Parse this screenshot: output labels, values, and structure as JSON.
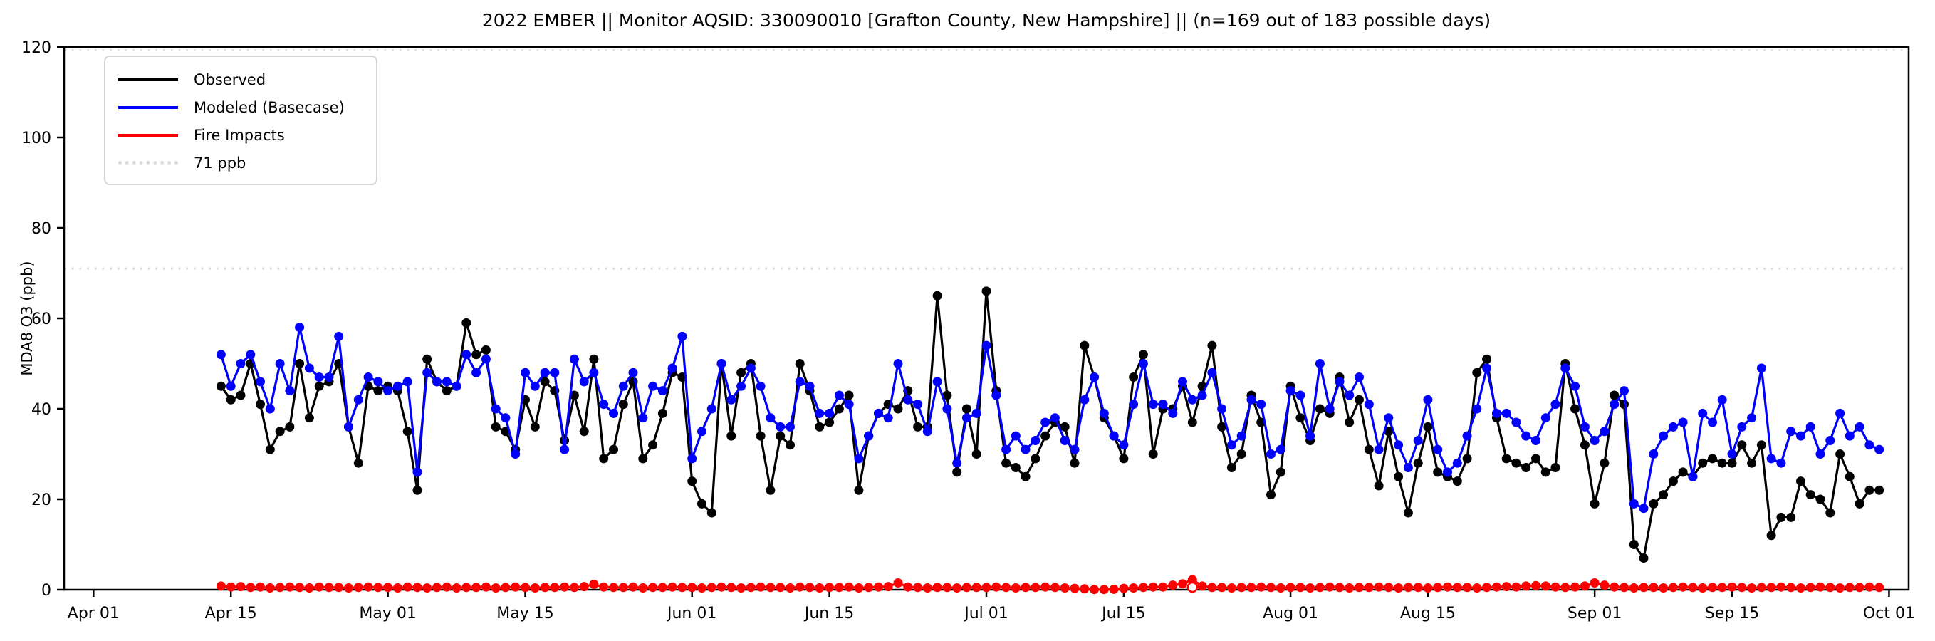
{
  "chart": {
    "title": "2022 EMBER || Monitor AQSID: 330090010 [Grafton County, New Hampshire] || (n=169 out of 183 possible days)",
    "ylabel": "MDA8 O3 (ppb)"
  },
  "legend": {
    "items": [
      {
        "label": "Observed",
        "color": "#000000",
        "line_style": "solid"
      },
      {
        "label": "Modeled (Basecase)",
        "color": "#0000ff",
        "line_style": "solid"
      },
      {
        "label": "Fire Impacts",
        "color": "#ff0000",
        "line_style": "solid"
      },
      {
        "label": "71 ppb",
        "color": "#d9d9d9",
        "line_style": "dotted"
      }
    ]
  },
  "chart_data": {
    "type": "line",
    "title": "2022 EMBER || Monitor AQSID: 330090010 [Grafton County, New Hampshire] || (n=169 out of 183 possible days)",
    "xlabel": "",
    "ylabel": "MDA8 O3 (ppb)",
    "ylim": [
      0,
      120
    ],
    "y_ticks": [
      0,
      20,
      40,
      60,
      80,
      100,
      120
    ],
    "x_ticks": [
      {
        "label": "Apr 01",
        "day": 0
      },
      {
        "label": "Apr 15",
        "day": 14
      },
      {
        "label": "May 01",
        "day": 30
      },
      {
        "label": "May 15",
        "day": 44
      },
      {
        "label": "Jun 01",
        "day": 61
      },
      {
        "label": "Jun 15",
        "day": 75
      },
      {
        "label": "Jul 01",
        "day": 91
      },
      {
        "label": "Jul 15",
        "day": 105
      },
      {
        "label": "Aug 01",
        "day": 122
      },
      {
        "label": "Aug 15",
        "day": 136
      },
      {
        "label": "Sep 01",
        "day": 153
      },
      {
        "label": "Sep 15",
        "day": 167
      },
      {
        "label": "Oct 01",
        "day": 183
      }
    ],
    "x_range_days": [
      -3,
      185
    ],
    "start_day": 13,
    "start_date_label": "Apr 14",
    "end_date_label": "Sep 30",
    "n_annotation": "n=169 out of 183 possible days",
    "legend_position": "upper left",
    "grid": false,
    "reference_lines": [
      {
        "label": "71 ppb",
        "value": 71,
        "color": "#d9d9d9",
        "style": "dotted"
      },
      {
        "label": "",
        "value": 119.3,
        "color": "#dedede",
        "style": "dotted"
      }
    ],
    "series": [
      {
        "name": "Observed",
        "color": "#000000",
        "values": [
          45,
          42,
          43,
          50,
          41,
          31,
          35,
          36,
          50,
          38,
          45,
          46,
          50,
          36,
          28,
          45,
          44,
          45,
          44,
          35,
          22,
          51,
          46,
          44,
          45,
          59,
          52,
          53,
          36,
          35,
          31,
          42,
          36,
          46,
          44,
          33,
          43,
          35,
          51,
          29,
          31,
          41,
          46,
          29,
          32,
          39,
          48,
          47,
          24,
          19,
          17,
          50,
          34,
          48,
          50,
          34,
          22,
          34,
          32,
          50,
          44,
          36,
          37,
          40,
          43,
          22,
          34,
          39,
          41,
          40,
          44,
          36,
          36,
          65,
          43,
          26,
          40,
          30,
          66,
          44,
          28,
          27,
          25,
          29,
          34,
          37,
          36,
          28,
          54,
          47,
          38,
          34,
          29,
          47,
          52,
          30,
          40,
          40,
          45,
          37,
          45,
          54,
          36,
          27,
          30,
          43,
          37,
          21,
          26,
          45,
          38,
          33,
          40,
          39,
          47,
          37,
          42,
          31,
          23,
          35,
          25,
          17,
          28,
          36,
          26,
          25,
          24,
          29,
          48,
          51,
          38,
          29,
          28,
          27,
          29,
          26,
          27,
          50,
          40,
          32,
          19,
          28,
          43,
          41,
          10,
          7,
          19,
          21,
          24,
          26,
          25,
          28,
          29,
          28,
          28,
          32,
          28,
          32,
          12,
          16,
          16,
          24,
          21,
          20,
          17,
          30,
          25,
          19,
          22,
          22
        ]
      },
      {
        "name": "Modeled (Basecase)",
        "color": "#0000ff",
        "values": [
          52,
          45,
          50,
          52,
          46,
          40,
          50,
          44,
          58,
          49,
          47,
          47,
          56,
          36,
          42,
          47,
          46,
          44,
          45,
          46,
          26,
          48,
          46,
          46,
          45,
          52,
          48,
          51,
          40,
          38,
          30,
          48,
          45,
          48,
          48,
          31,
          51,
          46,
          48,
          41,
          39,
          45,
          48,
          38,
          45,
          44,
          49,
          56,
          29,
          35,
          40,
          50,
          42,
          45,
          49,
          45,
          38,
          36,
          36,
          46,
          45,
          39,
          39,
          43,
          41,
          29,
          34,
          39,
          38,
          50,
          42,
          41,
          35,
          46,
          40,
          28,
          38,
          39,
          54,
          43,
          31,
          34,
          31,
          33,
          37,
          38,
          33,
          31,
          42,
          47,
          39,
          34,
          32,
          41,
          50,
          41,
          41,
          39,
          46,
          42,
          43,
          48,
          40,
          32,
          34,
          42,
          41,
          30,
          31,
          44,
          43,
          34,
          50,
          40,
          46,
          43,
          47,
          41,
          31,
          38,
          32,
          27,
          33,
          42,
          31,
          26,
          28,
          34,
          40,
          49,
          39,
          39,
          37,
          34,
          33,
          38,
          41,
          49,
          45,
          36,
          33,
          35,
          41,
          44,
          19,
          18,
          30,
          34,
          36,
          37,
          25,
          39,
          37,
          42,
          30,
          36,
          38,
          49,
          29,
          28,
          35,
          34,
          36,
          30,
          33,
          39,
          34,
          36,
          32,
          31
        ]
      },
      {
        "name": "Fire Impacts",
        "color": "#ff0000",
        "open_marker_index": 99,
        "values": [
          0.8,
          0.6,
          0.7,
          0.5,
          0.6,
          0.4,
          0.5,
          0.6,
          0.5,
          0.4,
          0.6,
          0.5,
          0.5,
          0.4,
          0.5,
          0.6,
          0.5,
          0.5,
          0.4,
          0.6,
          0.5,
          0.4,
          0.5,
          0.6,
          0.4,
          0.5,
          0.5,
          0.6,
          0.4,
          0.5,
          0.6,
          0.5,
          0.4,
          0.5,
          0.5,
          0.6,
          0.5,
          0.7,
          1.2,
          0.6,
          0.5,
          0.5,
          0.6,
          0.4,
          0.5,
          0.5,
          0.6,
          0.5,
          0.5,
          0.4,
          0.5,
          0.6,
          0.5,
          0.4,
          0.5,
          0.6,
          0.5,
          0.5,
          0.4,
          0.6,
          0.5,
          0.4,
          0.5,
          0.5,
          0.6,
          0.4,
          0.5,
          0.6,
          0.7,
          1.5,
          0.6,
          0.5,
          0.4,
          0.5,
          0.5,
          0.4,
          0.5,
          0.5,
          0.5,
          0.6,
          0.5,
          0.4,
          0.5,
          0.5,
          0.6,
          0.5,
          0.4,
          0.3,
          0.2,
          0.05,
          0.05,
          0.1,
          0.3,
          0.4,
          0.5,
          0.6,
          0.6,
          1.0,
          1.3,
          2.2,
          0.8,
          0.5,
          0.5,
          0.4,
          0.5,
          0.5,
          0.6,
          0.5,
          0.4,
          0.5,
          0.5,
          0.4,
          0.5,
          0.6,
          0.5,
          0.4,
          0.5,
          0.5,
          0.6,
          0.5,
          0.4,
          0.5,
          0.5,
          0.4,
          0.5,
          0.6,
          0.5,
          0.5,
          0.4,
          0.5,
          0.6,
          0.7,
          0.6,
          0.8,
          0.9,
          0.8,
          0.6,
          0.5,
          0.6,
          0.8,
          1.5,
          1.0,
          0.6,
          0.5,
          0.4,
          0.5,
          0.5,
          0.4,
          0.5,
          0.6,
          0.5,
          0.4,
          0.5,
          0.5,
          0.6,
          0.5,
          0.4,
          0.5,
          0.5,
          0.6,
          0.5,
          0.4,
          0.5,
          0.6,
          0.5,
          0.4,
          0.5,
          0.5,
          0.6,
          0.5
        ]
      }
    ]
  }
}
